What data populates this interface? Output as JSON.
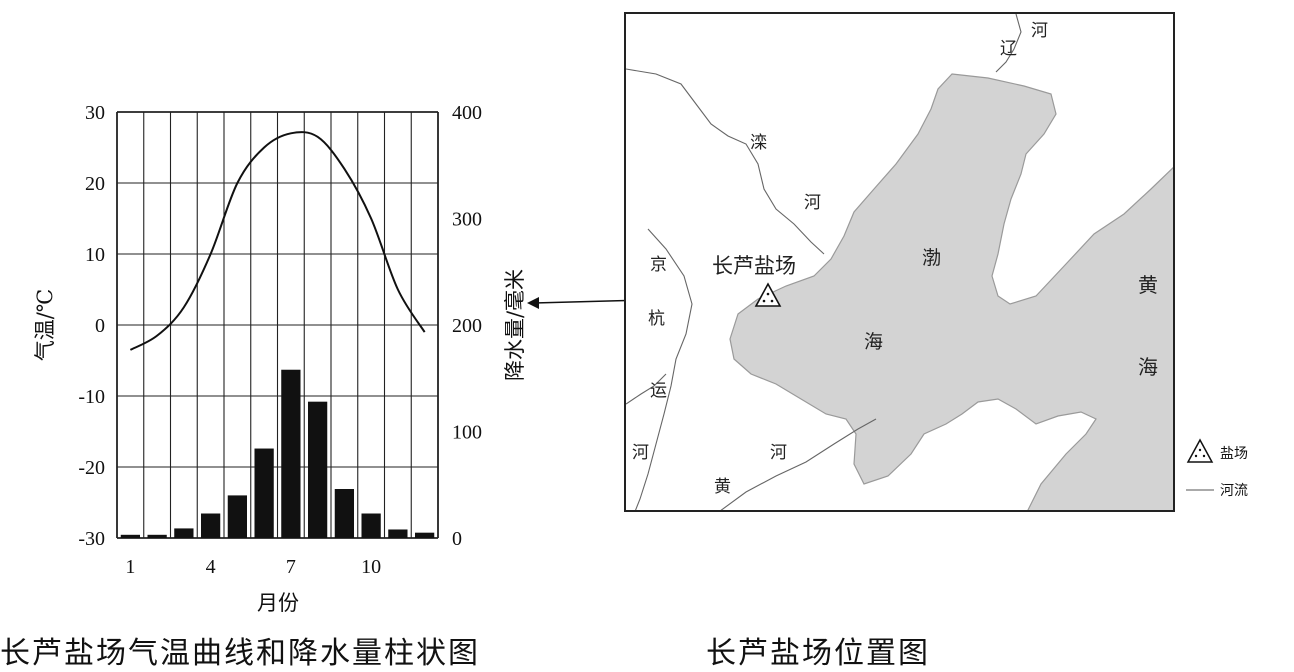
{
  "chart_data": {
    "type": "bar",
    "title": "",
    "xlabel": "月份",
    "categories": [
      1,
      2,
      3,
      4,
      5,
      6,
      7,
      8,
      9,
      10,
      11,
      12
    ],
    "x_ticks": [
      "1",
      "4",
      "7",
      "10"
    ],
    "y_left": {
      "label": "气温/℃",
      "lim": [
        -30,
        30
      ],
      "ticks": [
        "30",
        "20",
        "10",
        "0",
        "-10",
        "-20",
        "-30"
      ]
    },
    "y_right": {
      "label": "降水量/毫米",
      "lim": [
        0,
        400
      ],
      "ticks": [
        "400",
        "300",
        "200",
        "100",
        "0"
      ]
    },
    "series": [
      {
        "kind": "line",
        "axis": "left",
        "values": [
          -3.5,
          -1.5,
          2.5,
          10,
          20,
          25,
          27,
          26.5,
          22,
          15,
          5,
          -1
        ]
      },
      {
        "kind": "bar",
        "axis": "right",
        "values": [
          3,
          3,
          9,
          23,
          40,
          84,
          158,
          128,
          46,
          23,
          8,
          5
        ]
      }
    ],
    "grid": true
  },
  "map": {
    "labels": {
      "liao_he_1": "辽",
      "liao_he_2": "河",
      "luan_he_1": "滦",
      "luan_he_2": "河",
      "jing_1": "京",
      "jing_2": "杭",
      "jing_3": "运",
      "jing_4": "河",
      "bohai_1": "渤",
      "bohai_2": "海",
      "huanghe_1": "黄",
      "huanghe_2": "河",
      "huanghai_1": "黄",
      "huanghai_2": "海",
      "salt_field": "长芦盐场"
    },
    "legend": {
      "salt": "盐场",
      "river": "河流"
    }
  },
  "captions": {
    "left": "长芦盐场气温曲线和降水量柱状图",
    "right": "长芦盐场位置图"
  }
}
